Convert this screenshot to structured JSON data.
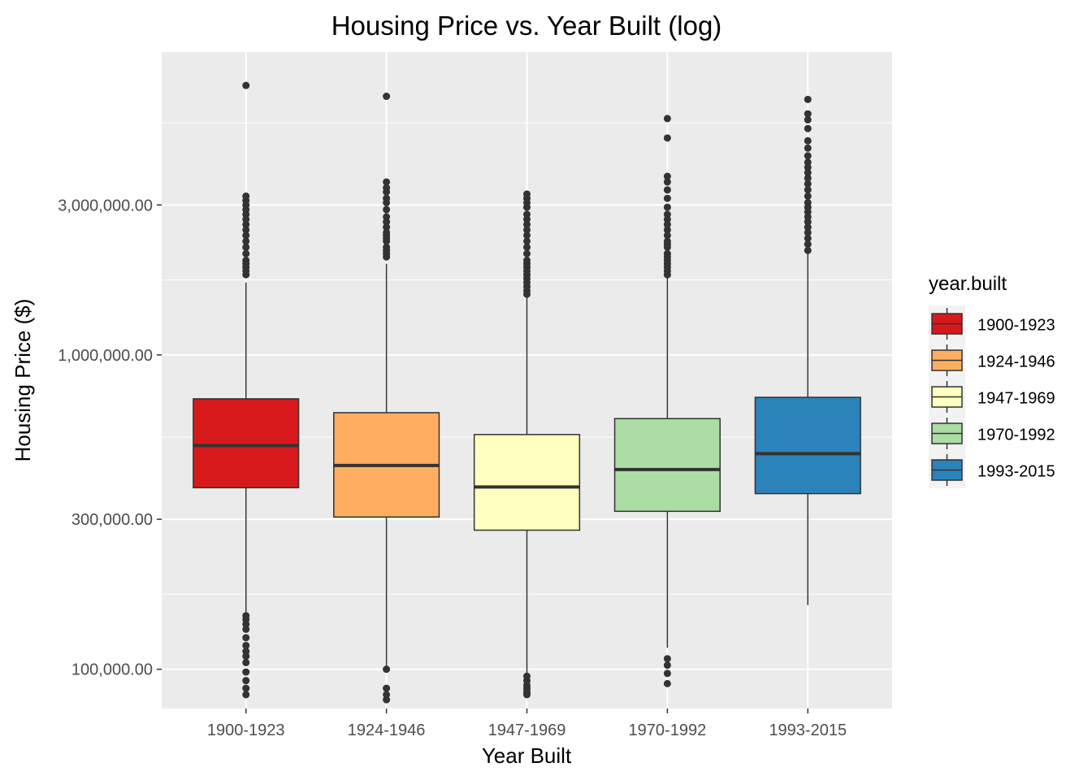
{
  "chart_data": {
    "type": "box",
    "title": "Housing Price vs. Year Built (log)",
    "xlabel": "Year Built",
    "ylabel": "Housing Price ($)",
    "y_scale": "log10",
    "ylim": [
      75000,
      9200000
    ],
    "y_ticks": [
      {
        "value": 100000,
        "label": "100,000.00"
      },
      {
        "value": 300000,
        "label": "300,000.00"
      },
      {
        "value": 1000000,
        "label": "1,000,000.00"
      },
      {
        "value": 3000000,
        "label": "3,000,000.00"
      }
    ],
    "y_minor_breaks": [
      173205,
      547723,
      1732051,
      5477226
    ],
    "grid": true,
    "legend": {
      "title": "year.built",
      "position": "right"
    },
    "categories": [
      "1900-1923",
      "1924-1946",
      "1947-1969",
      "1970-1992",
      "1993-2015"
    ],
    "boxes": [
      {
        "category": "1900-1923",
        "color": "#d7191c",
        "whisker_low": 152000,
        "q1": 378000,
        "median": 515000,
        "q3": 725000,
        "whisker_high": 1700000,
        "outliers": [
          7200000,
          3200000,
          3100000,
          3000000,
          2900000,
          2800000,
          2700000,
          2600000,
          2500000,
          2400000,
          2300000,
          2200000,
          2100000,
          2000000,
          1950000,
          1900000,
          1850000,
          1800000,
          148000,
          144000,
          139000,
          134000,
          126000,
          119000,
          114000,
          110000,
          105000,
          98000,
          92000,
          87000,
          83000
        ]
      },
      {
        "category": "1924-1946",
        "color": "#fdae61",
        "whisker_low": 100000,
        "q1": 305000,
        "median": 445000,
        "q3": 655000,
        "whisker_high": 1950000,
        "outliers": [
          6650000,
          3550000,
          3400000,
          3300000,
          3150000,
          3050000,
          2900000,
          2750000,
          2650000,
          2550000,
          2450000,
          2400000,
          2350000,
          2300000,
          2200000,
          2150000,
          2100000,
          2050000,
          100000,
          87000,
          83000,
          80000
        ]
      },
      {
        "category": "1947-1969",
        "color": "#ffffbf",
        "whisker_low": 95000,
        "q1": 277000,
        "median": 380000,
        "q3": 558000,
        "whisker_high": 1530000,
        "outliers": [
          3250000,
          3150000,
          3050000,
          2950000,
          2800000,
          2700000,
          2600000,
          2500000,
          2400000,
          2300000,
          2200000,
          2100000,
          2000000,
          1950000,
          1900000,
          1850000,
          1800000,
          1750000,
          1700000,
          1650000,
          1600000,
          1560000,
          95000,
          92000,
          89000,
          87000,
          85000,
          84000,
          83000
        ]
      },
      {
        "category": "1970-1992",
        "color": "#abdda4",
        "whisker_low": 117000,
        "q1": 318000,
        "median": 432000,
        "q3": 627000,
        "whisker_high": 1770000,
        "outliers": [
          5650000,
          4900000,
          3700000,
          3550000,
          3350000,
          3150000,
          2950000,
          2800000,
          2700000,
          2600000,
          2500000,
          2400000,
          2300000,
          2250000,
          2200000,
          2100000,
          2050000,
          2000000,
          1950000,
          1900000,
          1850000,
          1800000,
          108000,
          103000,
          97000,
          90000
        ]
      },
      {
        "category": "1993-2015",
        "color": "#2b83ba",
        "whisker_low": 160000,
        "q1": 362000,
        "median": 485000,
        "q3": 733000,
        "whisker_high": 2120000,
        "outliers": [
          6500000,
          5850000,
          5600000,
          5250000,
          4800000,
          4550000,
          4300000,
          4100000,
          3950000,
          3800000,
          3650000,
          3500000,
          3350000,
          3200000,
          3050000,
          2950000,
          2850000,
          2750000,
          2650000,
          2550000,
          2450000,
          2350000,
          2250000,
          2150000
        ]
      }
    ]
  }
}
